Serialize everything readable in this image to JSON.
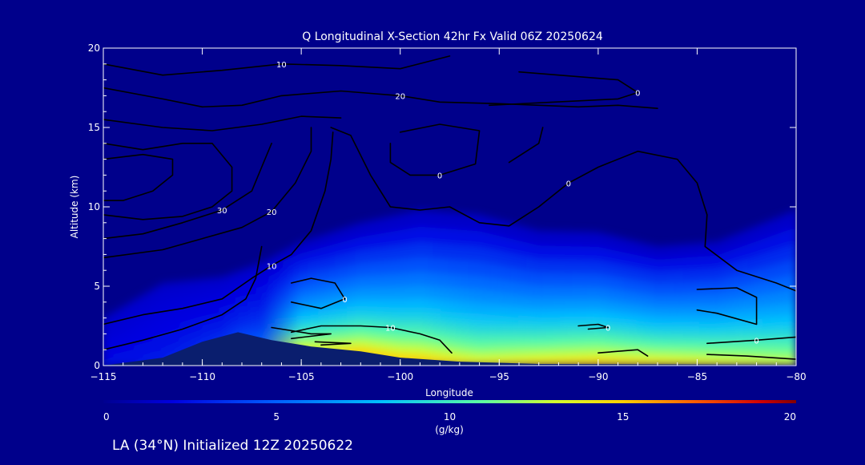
{
  "chart_data": {
    "type": "heatmap",
    "title": "Q Longitudinal X-Section 42hr  Fx Valid 06Z 20250624",
    "xlabel": "Longitude",
    "ylabel": "Altitude (km)",
    "xlim": [
      -115,
      -80
    ],
    "ylim": [
      0,
      20
    ],
    "x_ticks": [
      -115,
      -110,
      -105,
      -100,
      -95,
      -90,
      -85,
      -80
    ],
    "x_tick_labels": [
      "−115",
      "−110",
      "−105",
      "−100",
      "−95",
      "−90",
      "−85",
      "−80"
    ],
    "y_ticks": [
      0,
      5,
      10,
      15,
      20
    ],
    "y_tick_labels": [
      "0",
      "5",
      "10",
      "15",
      "20"
    ],
    "colorbar": {
      "label": "(g/kg)",
      "range": [
        0,
        20
      ],
      "ticks": [
        0,
        5,
        10,
        15,
        20
      ],
      "tick_labels": [
        "0",
        "5",
        "10",
        "15",
        "20"
      ]
    },
    "terrain": [
      {
        "lon": -115,
        "alt": 0
      },
      {
        "lon": -112,
        "alt": 0.5
      },
      {
        "lon": -110,
        "alt": 1.5
      },
      {
        "lon": -108.2,
        "alt": 2.1
      },
      {
        "lon": -106.5,
        "alt": 1.6
      },
      {
        "lon": -104.5,
        "alt": 1.2
      },
      {
        "lon": -102,
        "alt": 0.9
      },
      {
        "lon": -100,
        "alt": 0.5
      },
      {
        "lon": -97,
        "alt": 0.25
      },
      {
        "lon": -93,
        "alt": 0.1
      },
      {
        "lon": -80,
        "alt": 0.05
      }
    ],
    "q_profile": [
      {
        "lon": -115,
        "surface_q": 2.5,
        "top_alt": 3
      },
      {
        "lon": -112,
        "surface_q": 3,
        "top_alt": 5.2
      },
      {
        "lon": -109,
        "surface_q": 3.5,
        "top_alt": 5.6
      },
      {
        "lon": -107,
        "surface_q": 5,
        "top_alt": 6.5
      },
      {
        "lon": -105,
        "surface_q": 14,
        "top_alt": 7.8
      },
      {
        "lon": -102,
        "surface_q": 16,
        "top_alt": 9
      },
      {
        "lon": -99,
        "surface_q": 16,
        "top_alt": 9.8
      },
      {
        "lon": -96,
        "surface_q": 15,
        "top_alt": 9.5
      },
      {
        "lon": -93,
        "surface_q": 16,
        "top_alt": 8.5
      },
      {
        "lon": -90,
        "surface_q": 16.5,
        "top_alt": 8.4
      },
      {
        "lon": -87,
        "surface_q": 16,
        "top_alt": 7.5
      },
      {
        "lon": -84,
        "surface_q": 15.5,
        "top_alt": 7.8
      },
      {
        "lon": -80,
        "surface_q": 14.5,
        "top_alt": 9.8
      }
    ],
    "contours": [
      {
        "level_label": "10",
        "points": [
          [
            -115,
            19
          ],
          [
            -112,
            18.3
          ],
          [
            -109,
            18.6
          ],
          [
            -106,
            19
          ],
          [
            -103,
            18.9
          ],
          [
            -100,
            18.7
          ],
          [
            -97.5,
            19.5
          ]
        ]
      },
      {
        "level_label": "20",
        "points": [
          [
            -115,
            17.5
          ],
          [
            -112,
            16.8
          ],
          [
            -110,
            16.3
          ],
          [
            -108,
            16.4
          ],
          [
            -106,
            17
          ],
          [
            -103,
            17.3
          ],
          [
            -100,
            17
          ],
          [
            -98,
            16.6
          ],
          [
            -95,
            16.5
          ],
          [
            -93,
            16.4
          ],
          [
            -91,
            16.3
          ],
          [
            -89,
            16.4
          ],
          [
            -87,
            16.2
          ]
        ]
      },
      {
        "level_label": "",
        "points": [
          [
            -115,
            15.5
          ],
          [
            -112,
            15
          ],
          [
            -109.5,
            14.8
          ],
          [
            -107,
            15.2
          ],
          [
            -105,
            15.7
          ],
          [
            -103,
            15.6
          ]
        ]
      },
      {
        "level_label": "",
        "points": [
          [
            -115,
            14
          ],
          [
            -113,
            13.6
          ],
          [
            -111,
            14
          ],
          [
            -109.5,
            14
          ],
          [
            -108.5,
            12.5
          ],
          [
            -108.5,
            11
          ],
          [
            -109.5,
            10
          ],
          [
            -111,
            9.4
          ],
          [
            -113,
            9.2
          ],
          [
            -115,
            9.5
          ]
        ]
      },
      {
        "level_label": "",
        "points": [
          [
            -115,
            13
          ],
          [
            -113,
            13.3
          ],
          [
            -111.5,
            13
          ],
          [
            -111.5,
            12
          ],
          [
            -112.5,
            11
          ],
          [
            -114,
            10.4
          ],
          [
            -115,
            10.4
          ]
        ]
      },
      {
        "level_label": "30",
        "points": [
          [
            -115,
            8
          ],
          [
            -113,
            8.3
          ],
          [
            -111,
            9
          ],
          [
            -109,
            9.8
          ],
          [
            -107.5,
            11
          ],
          [
            -107,
            12.5
          ],
          [
            -106.5,
            14
          ]
        ]
      },
      {
        "level_label": "20",
        "points": [
          [
            -115,
            6.8
          ],
          [
            -112,
            7.3
          ],
          [
            -110,
            8
          ],
          [
            -108,
            8.7
          ],
          [
            -106.5,
            9.7
          ],
          [
            -105.3,
            11.5
          ],
          [
            -104.5,
            13.5
          ],
          [
            -104.5,
            15
          ]
        ]
      },
      {
        "level_label": "10",
        "points": [
          [
            -115,
            2.6
          ],
          [
            -113,
            3.2
          ],
          [
            -111,
            3.6
          ],
          [
            -109,
            4.2
          ],
          [
            -107.5,
            5.5
          ],
          [
            -106.5,
            6.3
          ],
          [
            -105.5,
            7
          ],
          [
            -104.5,
            8.5
          ],
          [
            -103.8,
            11
          ],
          [
            -103.5,
            13
          ],
          [
            -103.4,
            14.7
          ]
        ]
      },
      {
        "level_label": "",
        "points": [
          [
            -115,
            1
          ],
          [
            -113,
            1.6
          ],
          [
            -111,
            2.3
          ],
          [
            -109,
            3.2
          ],
          [
            -107.8,
            4.2
          ],
          [
            -107.3,
            5.5
          ],
          [
            -107,
            7.5
          ]
        ]
      },
      {
        "level_label": "10",
        "points": [
          [
            -105.5,
            2.1
          ],
          [
            -104,
            2.5
          ],
          [
            -102,
            2.5
          ],
          [
            -100.5,
            2.4
          ],
          [
            -99,
            2
          ],
          [
            -98,
            1.6
          ],
          [
            -97.4,
            0.8
          ]
        ]
      },
      {
        "level_label": "0",
        "points": [
          [
            -103.5,
            15
          ],
          [
            -102.5,
            14.5
          ],
          [
            -101.5,
            12
          ],
          [
            -100.5,
            10
          ],
          [
            -99,
            9.8
          ],
          [
            -97.5,
            10
          ],
          [
            -96,
            9
          ],
          [
            -94.5,
            8.8
          ],
          [
            -93,
            10
          ],
          [
            -91.5,
            11.5
          ],
          [
            -90,
            12.5
          ],
          [
            -88,
            13.5
          ],
          [
            -86,
            13
          ],
          [
            -85,
            11.5
          ],
          [
            -84.5,
            9.5
          ],
          [
            -84.6,
            7.5
          ],
          [
            -83,
            6
          ],
          [
            -81,
            5.2
          ],
          [
            -80,
            4.7
          ]
        ]
      },
      {
        "level_label": "0",
        "points": [
          [
            -105.5,
            5.2
          ],
          [
            -104.5,
            5.5
          ],
          [
            -103.3,
            5.2
          ],
          [
            -102.8,
            4.2
          ],
          [
            -104,
            3.6
          ],
          [
            -105.5,
            4
          ]
        ]
      },
      {
        "level_label": "0",
        "points": [
          [
            -100,
            14.7
          ],
          [
            -98,
            15.2
          ],
          [
            -96,
            14.8
          ],
          [
            -96.2,
            12.7
          ],
          [
            -98,
            12
          ],
          [
            -99.5,
            12
          ],
          [
            -100.5,
            12.8
          ],
          [
            -100.5,
            14
          ]
        ]
      },
      {
        "level_label": "0",
        "points": [
          [
            -95.5,
            16.4
          ],
          [
            -89,
            16.8
          ],
          [
            -88,
            17.2
          ],
          [
            -89,
            18
          ],
          [
            -94,
            18.5
          ]
        ]
      },
      {
        "level_label": "",
        "points": [
          [
            -94.5,
            12.8
          ],
          [
            -93,
            14
          ],
          [
            -92.8,
            15
          ]
        ]
      },
      {
        "level_label": "",
        "points": [
          [
            -106.5,
            2.4
          ],
          [
            -104.5,
            2
          ],
          [
            -103.5,
            2
          ],
          [
            -105.5,
            1.7
          ]
        ]
      },
      {
        "level_label": "",
        "points": [
          [
            -104.3,
            1.5
          ],
          [
            -102.5,
            1.4
          ],
          [
            -104,
            1.3
          ]
        ]
      },
      {
        "level_label": "0",
        "points": [
          [
            -91,
            2.5
          ],
          [
            -90,
            2.6
          ],
          [
            -89.5,
            2.4
          ],
          [
            -90.5,
            2.3
          ]
        ]
      },
      {
        "level_label": "",
        "points": [
          [
            -90,
            0.8
          ],
          [
            -88,
            1
          ],
          [
            -87.5,
            0.6
          ]
        ]
      },
      {
        "level_label": "",
        "points": [
          [
            -85,
            4.8
          ],
          [
            -83,
            4.9
          ],
          [
            -82,
            4.3
          ],
          [
            -82,
            2.6
          ],
          [
            -84,
            3.3
          ],
          [
            -85,
            3.5
          ]
        ]
      },
      {
        "level_label": "0",
        "points": [
          [
            -84.5,
            1.4
          ],
          [
            -82,
            1.6
          ],
          [
            -80,
            1.8
          ]
        ]
      },
      {
        "level_label": "",
        "points": [
          [
            -84.5,
            0.7
          ],
          [
            -82.5,
            0.6
          ],
          [
            -80,
            0.4
          ]
        ]
      }
    ]
  },
  "footer": {
    "caption": "LA (34°N) Initialized 12Z 20250622"
  },
  "colors": {
    "background": "#00008b",
    "contour": "#000000",
    "terrain": "#0a1e6e",
    "text": "#ffffff"
  }
}
